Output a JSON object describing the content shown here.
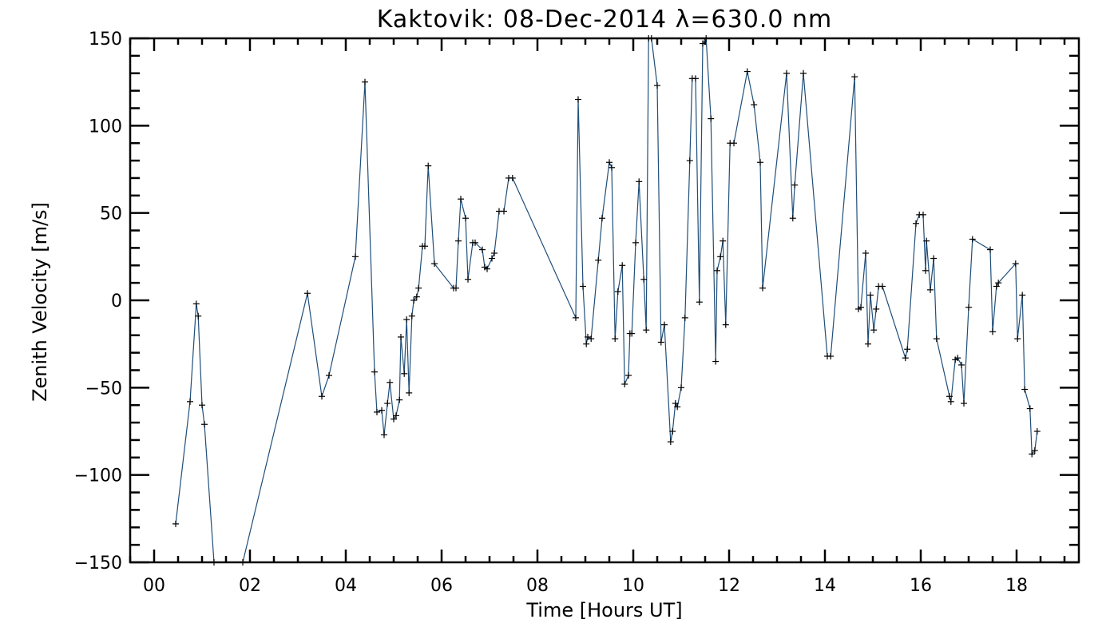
{
  "chart_data": {
    "type": "line",
    "title": "Kaktovik: 08-Dec-2014 λ=630.0 nm",
    "xlabel": "Time [Hours UT]",
    "ylabel": "Zenith Velocity [m/s]",
    "xlim": [
      -0.5,
      19.3
    ],
    "ylim": [
      -150,
      150
    ],
    "x_ticks": [
      0,
      2,
      4,
      6,
      8,
      10,
      12,
      14,
      16,
      18
    ],
    "x_tick_labels": [
      "00",
      "02",
      "04",
      "06",
      "08",
      "10",
      "12",
      "14",
      "16",
      "18"
    ],
    "y_ticks": [
      -150,
      -100,
      -50,
      0,
      50,
      100,
      150
    ],
    "y_tick_labels": [
      "-150",
      "-100",
      "-50",
      "0",
      "50",
      "100",
      "150"
    ],
    "marker": "plus",
    "grid": false,
    "colors": {
      "line": "#1f4e79",
      "marker": "#000000",
      "axes": "#000000"
    },
    "series": [
      {
        "x": [
          0.45,
          0.75,
          0.88,
          0.92,
          1.0,
          1.05,
          1.25,
          1.85,
          3.2,
          3.5,
          3.65,
          4.2,
          4.4,
          4.6,
          4.65,
          4.75,
          4.8,
          4.87,
          4.92,
          5.0,
          5.05,
          5.12,
          5.15,
          5.22,
          5.27,
          5.32,
          5.38,
          5.42,
          5.48,
          5.52,
          5.6,
          5.65,
          5.72,
          5.85,
          6.25,
          6.3,
          6.35,
          6.4,
          6.5,
          6.55,
          6.65,
          6.7,
          6.85,
          6.9,
          6.95,
          7.05,
          7.1,
          7.2,
          7.3,
          7.4,
          7.48,
          8.8,
          8.85,
          8.95,
          9.02,
          9.05,
          9.12,
          9.27,
          9.35,
          9.5,
          9.55,
          9.62,
          9.68,
          9.77,
          9.82,
          9.9,
          9.93,
          9.97,
          10.05,
          10.12,
          10.22,
          10.27,
          10.32,
          10.38,
          10.5,
          10.58,
          10.65,
          10.78,
          10.82,
          10.88,
          10.92,
          11.0,
          11.08,
          11.18,
          11.23,
          11.3,
          11.38,
          11.45,
          11.52,
          11.62,
          11.72,
          11.75,
          11.82,
          11.87,
          11.93,
          12.02,
          12.1,
          12.38,
          12.52,
          12.65,
          12.7,
          13.2,
          13.33,
          13.37,
          13.55,
          14.05,
          14.12,
          14.62,
          14.7,
          14.75,
          14.85,
          14.9,
          14.95,
          15.02,
          15.07,
          15.12,
          15.2,
          15.68,
          15.72,
          15.9,
          15.97,
          16.05,
          16.1,
          16.12,
          16.2,
          16.27,
          16.33,
          16.6,
          16.63,
          16.72,
          16.77,
          16.85,
          16.9,
          17.0,
          17.08,
          17.45,
          17.5,
          17.58,
          17.62,
          17.98,
          18.02,
          18.12,
          18.17,
          18.28,
          18.32,
          18.38,
          18.43
        ],
        "y": [
          -128,
          -58,
          -2,
          -9,
          -60,
          -71,
          -150,
          -150,
          4,
          -55,
          -43,
          25,
          125,
          -41,
          -64,
          -63,
          -77,
          -59,
          -47,
          -68,
          -66,
          -57,
          -21,
          -42,
          -11,
          -53,
          -9,
          0,
          2,
          7,
          31,
          31,
          77,
          21,
          7,
          7,
          34,
          58,
          47,
          12,
          33,
          33,
          29,
          19,
          18,
          24,
          27,
          51,
          51,
          70,
          70,
          -10,
          115,
          8,
          -25,
          -21,
          -22,
          23,
          47,
          79,
          76,
          -22,
          5,
          20,
          -48,
          -43,
          -19,
          -19,
          33,
          68,
          12,
          -17,
          150,
          150,
          123,
          -24,
          -14,
          -81,
          -75,
          -59,
          -61,
          -50,
          -10,
          80,
          127,
          127,
          -1,
          147,
          150,
          104,
          -35,
          17,
          25,
          34,
          -14,
          90,
          90,
          131,
          112,
          79,
          7,
          130,
          47,
          66,
          130,
          -32,
          -32,
          128,
          -5,
          -4,
          27,
          -25,
          3,
          -17,
          -5,
          8,
          8,
          -33,
          -28,
          44,
          49,
          49,
          17,
          34,
          6,
          24,
          -22,
          -55,
          -58,
          -34,
          -33,
          -37,
          -59,
          -4,
          35,
          29,
          -18,
          8,
          10,
          21,
          -22,
          3,
          -51,
          -62,
          -88,
          -86,
          -75
        ]
      }
    ]
  }
}
